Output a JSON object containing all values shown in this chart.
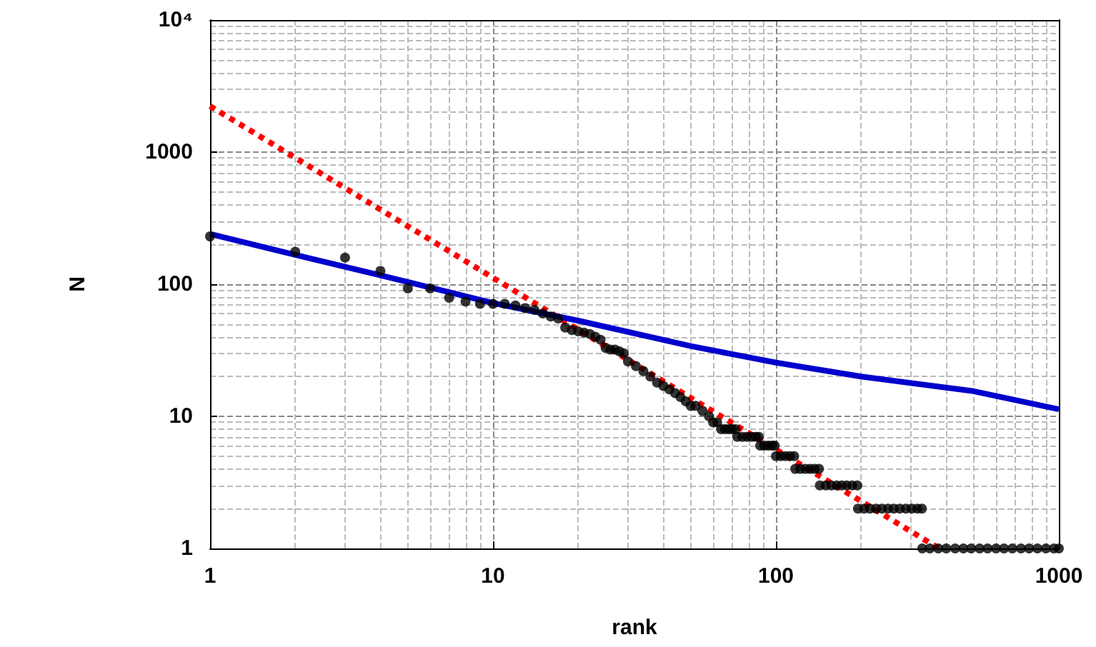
{
  "chart_data": {
    "type": "scatter",
    "xlabel": "rank",
    "ylabel": "N",
    "log": "xy",
    "grid": true,
    "xlim": [
      1,
      1000
    ],
    "xticks": [
      1,
      10,
      100,
      1000
    ],
    "ylim": [
      1,
      10000
    ],
    "yticks": [
      1,
      10,
      100,
      1000,
      {
        "value": 10000,
        "label": "10⁴"
      }
    ],
    "series": [
      {
        "type": "line",
        "color": "#ff0000",
        "line_style": "dotted",
        "marker": "none",
        "x": [
          1,
          2,
          5,
          10,
          20,
          50,
          100,
          200,
          377
        ],
        "values": [
          2230,
          906,
          275,
          112,
          45.4,
          13.8,
          5.6,
          2.28,
          1
        ]
      },
      {
        "type": "line",
        "color": "#0000cc",
        "line_style": "solid",
        "marker": "none",
        "x": [
          1,
          2,
          5,
          10,
          20,
          50,
          100,
          200,
          500,
          1000
        ],
        "values": [
          240,
          167,
          104,
          72,
          53,
          34,
          25.5,
          20,
          15.5,
          11.3
        ]
      },
      {
        "color": "#000000",
        "marker": "circle",
        "x": [
          1,
          2,
          3,
          4,
          5,
          6,
          7,
          8,
          9,
          10,
          11,
          12,
          13,
          14,
          15,
          16,
          17,
          18,
          19,
          20,
          21,
          22,
          23,
          24,
          25,
          26,
          27,
          28,
          29,
          30,
          32,
          34,
          36,
          38,
          40,
          42,
          44,
          46,
          48,
          50,
          52,
          55,
          58,
          60,
          62,
          64,
          66,
          68,
          70,
          72,
          73,
          76,
          79,
          82,
          85,
          87,
          88,
          91,
          94,
          97,
          99,
          100,
          104,
          108,
          112,
          116,
          117,
          122,
          127,
          132,
          137,
          142,
          143,
          150,
          157,
          164,
          171,
          178,
          186,
          194,
          195,
          205,
          215,
          226,
          237,
          249,
          261,
          274,
          288,
          302,
          316,
          328,
          329,
          350,
          375,
          400,
          430,
          460,
          490,
          525,
          560,
          600,
          640,
          685,
          735,
          785,
          840,
          900,
          960,
          1000
        ],
        "values": [
          230,
          176,
          159,
          126,
          93,
          93,
          79,
          74,
          71,
          71,
          71,
          69,
          66,
          64,
          60,
          57,
          55,
          47,
          45,
          44,
          43,
          42,
          40,
          38,
          33,
          32,
          32,
          31,
          30,
          26,
          24,
          22,
          20,
          18,
          17,
          16,
          15,
          14,
          13,
          12,
          12,
          11,
          10,
          9,
          9,
          8,
          8,
          8,
          8,
          8,
          7,
          7,
          7,
          7,
          7,
          7,
          6,
          6,
          6,
          6,
          6,
          5,
          5,
          5,
          5,
          5,
          4,
          4,
          4,
          4,
          4,
          4,
          3,
          3,
          3,
          3,
          3,
          3,
          3,
          3,
          2,
          2,
          2,
          2,
          2,
          2,
          2,
          2,
          2,
          2,
          2,
          2,
          1,
          1,
          1,
          1,
          1,
          1,
          1,
          1,
          1,
          1,
          1,
          1,
          1,
          1,
          1,
          1,
          1,
          1
        ]
      }
    ]
  }
}
